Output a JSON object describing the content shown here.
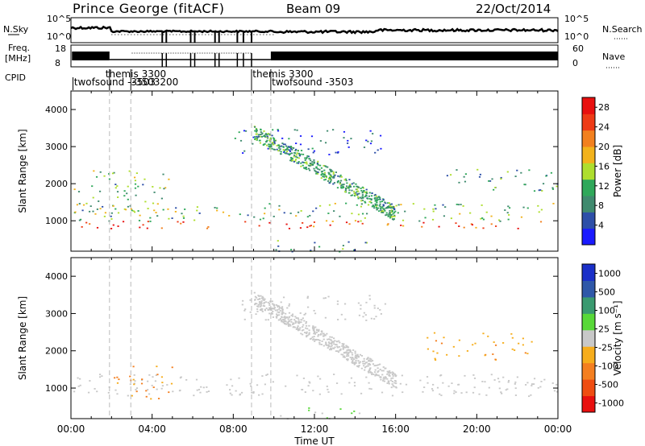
{
  "header": {
    "site": "Prince George (fitACF)",
    "beam": "Beam 09",
    "date": "22/Oct/2014"
  },
  "panels": {
    "nsky_label": "N.Sky",
    "nsearch_label": "N.Search",
    "freq_label_1": "Freq.",
    "freq_label_2": "[MHz]",
    "nave_label": "Nave",
    "cpid_label": "CPID",
    "left_ticks_top": [
      "10^5",
      "10^0"
    ],
    "right_ticks_top": [
      "10^5",
      "10^0"
    ],
    "freq_ticks": [
      "18",
      "8"
    ],
    "nave_ticks": [
      "60",
      "0"
    ],
    "cpid_names": [
      "twofsound -3503",
      "themis 3300",
      "-3503200",
      "themis 3300",
      "twofsound -3503"
    ]
  },
  "colors": {
    "power": [
      "#1a1aff",
      "#2d4fa8",
      "#3f8a6e",
      "#2fa85a",
      "#aede2e",
      "#f2b21b",
      "#f2801e",
      "#ee3b16",
      "#e8100f"
    ],
    "velocity": [
      "#e8100f",
      "#ef4d12",
      "#f47f20",
      "#f6ad1c",
      "#c8c8c8",
      "#58d838",
      "#3a9a70",
      "#2f58a8",
      "#1a2fc8"
    ],
    "ground_scatter": "#c8c8c8"
  },
  "chart_data": [
    {
      "type": "heatmap",
      "title": "Power",
      "xlabel": "",
      "ylabel": "Slant Range [km]",
      "x_ticks": [
        "00:00",
        "04:00",
        "08:00",
        "12:00",
        "16:00",
        "20:00",
        "00:00"
      ],
      "xlim_hours": [
        0,
        24
      ],
      "y_ticks": [
        1000,
        2000,
        3000,
        4000
      ],
      "ylim_km": [
        180,
        4500
      ],
      "colorbar": {
        "label": "Power [dB]",
        "ticks": [
          4,
          8,
          12,
          16,
          20,
          24,
          28
        ],
        "range": [
          0,
          30
        ]
      },
      "cpid_boundaries_hours": [
        1.9,
        2.95,
        8.9,
        9.85
      ],
      "scatter_bands": [
        {
          "t0": 0.1,
          "t1": 24,
          "r0": 800,
          "r1": 1000,
          "level": 0.92
        },
        {
          "t0": 0.1,
          "t1": 24,
          "r0": 1000,
          "r1": 1500,
          "level": 0.4
        },
        {
          "t0": 0.1,
          "t1": 4.8,
          "r0": 1200,
          "r1": 2400,
          "level": 0.4
        },
        {
          "t0": 8.0,
          "t1": 15.5,
          "r0": 2800,
          "r1": 3500,
          "level": 0.15
        },
        {
          "t0": 10.0,
          "t1": 15.0,
          "r0": 180,
          "r1": 500,
          "level": 0.3
        },
        {
          "t0": 18.5,
          "t1": 24,
          "r0": 1800,
          "r1": 2400,
          "level": 0.3
        }
      ]
    },
    {
      "type": "heatmap",
      "title": "Velocity",
      "xlabel": "Time UT",
      "ylabel": "Slant Range [km]",
      "x_ticks": [
        "00:00",
        "04:00",
        "08:00",
        "12:00",
        "16:00",
        "20:00",
        "00:00"
      ],
      "xlim_hours": [
        0,
        24
      ],
      "y_ticks": [
        1000,
        2000,
        3000,
        4000
      ],
      "ylim_km": [
        180,
        4500
      ],
      "colorbar": {
        "label": "Velocity [m s⁻¹]",
        "ticks": [
          1000,
          500,
          100,
          25,
          -25,
          -100,
          -500,
          -1000
        ],
        "range": [
          -1000,
          1000
        ]
      },
      "cpid_boundaries_hours": [
        1.9,
        2.95,
        8.9,
        9.85
      ],
      "ground_scatter_bands": [
        {
          "t0": 0,
          "t1": 24,
          "r0": 800,
          "r1": 1400
        },
        {
          "t0": 8.2,
          "t1": 15.5,
          "r0": 2800,
          "r1": 3500
        }
      ],
      "ionospheric_bands": [
        {
          "t0": 2.0,
          "t1": 5.0,
          "r0": 700,
          "r1": 1700,
          "velocity": -400
        },
        {
          "t0": 17.5,
          "t1": 23.0,
          "r0": 1700,
          "r1": 2500,
          "velocity": -300
        },
        {
          "t0": 10.0,
          "t1": 14.5,
          "r0": 180,
          "r1": 500,
          "velocity": 60
        }
      ]
    }
  ]
}
